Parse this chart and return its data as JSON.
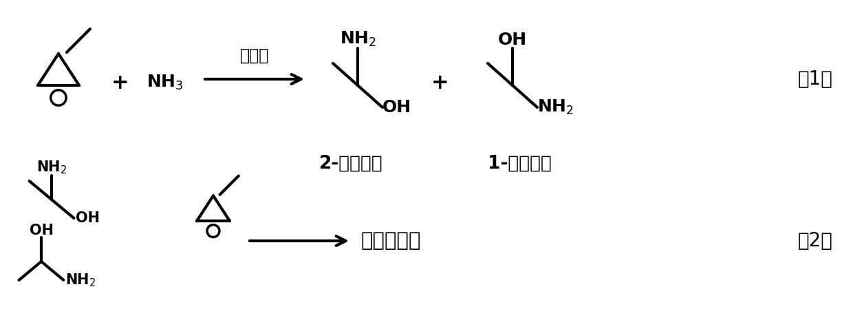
{
  "bg_color": "#ffffff",
  "line_color": "#000000",
  "text_color": "#000000",
  "figsize": [
    12.4,
    4.65
  ],
  "dpi": 100,
  "catalyst": "傅化剂",
  "label1": "（1）",
  "label2": "（2）",
  "product1_name": "2-氨基丙醇",
  "product2_name": "1-氨基丙醇",
  "product3_name": "多取代产物"
}
